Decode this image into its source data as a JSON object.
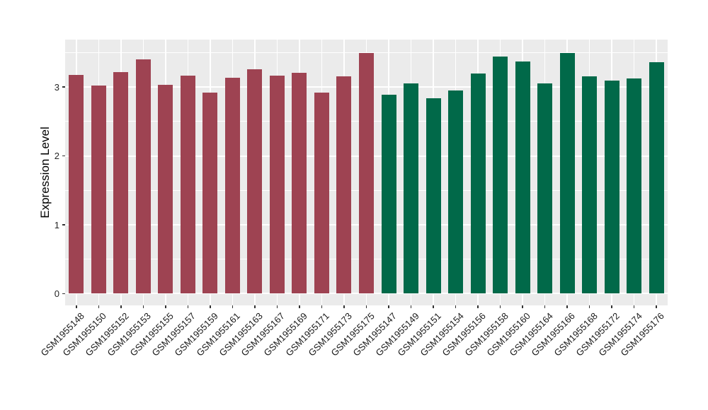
{
  "figure": {
    "background": "#FFFFFF",
    "panel_background": "#EBEBEB",
    "gridline_color": "#FFFFFF",
    "axis_text_color": "#262626",
    "tick_color": "#333333"
  },
  "chart_data": {
    "type": "bar",
    "title": "",
    "xlabel": "",
    "ylabel": "Expression Level",
    "ylim": [
      -0.17,
      3.69
    ],
    "yticks_major": [
      0,
      1,
      2,
      3
    ],
    "yticks_minor": [
      0.5,
      1.5,
      2.5,
      3.5
    ],
    "grid": true,
    "legend": "none",
    "categories": [
      "GSM1955148",
      "GSM1955150",
      "GSM1955152",
      "GSM1955153",
      "GSM1955155",
      "GSM1955157",
      "GSM1955159",
      "GSM1955161",
      "GSM1955163",
      "GSM1955167",
      "GSM1955169",
      "GSM1955171",
      "GSM1955173",
      "GSM1955175",
      "GSM1955147",
      "GSM1955149",
      "GSM1955151",
      "GSM1955154",
      "GSM1955156",
      "GSM1955158",
      "GSM1955160",
      "GSM1955164",
      "GSM1955166",
      "GSM1955168",
      "GSM1955172",
      "GSM1955174",
      "GSM1955176"
    ],
    "values": [
      3.18,
      3.02,
      3.22,
      3.4,
      3.03,
      3.17,
      2.92,
      3.14,
      3.26,
      3.17,
      3.21,
      2.92,
      3.16,
      3.49,
      2.89,
      3.05,
      2.84,
      2.95,
      3.2,
      3.44,
      3.37,
      3.05,
      3.49,
      3.16,
      3.09,
      3.13,
      3.36
    ],
    "bar_groups": [
      "groupA",
      "groupA",
      "groupA",
      "groupA",
      "groupA",
      "groupA",
      "groupA",
      "groupA",
      "groupA",
      "groupA",
      "groupA",
      "groupA",
      "groupA",
      "groupA",
      "groupB",
      "groupB",
      "groupB",
      "groupB",
      "groupB",
      "groupB",
      "groupB",
      "groupB",
      "groupB",
      "groupB",
      "groupB",
      "groupB",
      "groupB"
    ],
    "group_colors": {
      "groupA": "#9E4352",
      "groupB": "#016949"
    }
  }
}
